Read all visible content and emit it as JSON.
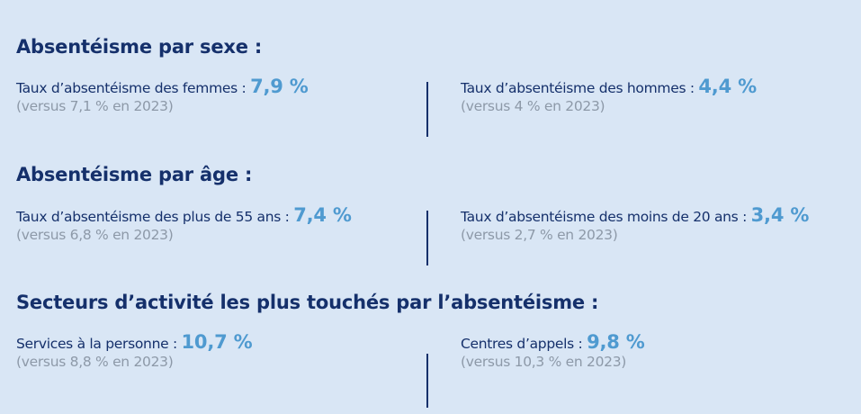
{
  "sections": [
    {
      "title": "Absentéisme par sexe :",
      "left": {
        "label": "Taux d’absentéisme des femmes : ",
        "value": "7,9 %",
        "compare": "(versus 7,1 % en 2023)"
      },
      "right": {
        "label": "Taux d’absentéisme des hommes : ",
        "value": "4,4 %",
        "compare": "(versus 4 % en 2023)"
      }
    },
    {
      "title": "Absentéisme par âge :",
      "left": {
        "label": "Taux d’absentéisme des plus de 55 ans : ",
        "value": "7,4 %",
        "compare": "(versus 6,8 % en 2023)"
      },
      "right": {
        "label": "Taux d’absentéisme des moins de 20 ans : ",
        "value": "3,4 %",
        "compare": "(versus 2,7 % en 2023)"
      }
    },
    {
      "title": "Secteurs d’activité les plus touchés par l’absentéisme :",
      "left": {
        "label": "Services à la personne : ",
        "value": "10,7 %",
        "compare": "(versus 8,8 % en 2023)"
      },
      "right": {
        "label": "Centres d’appels : ",
        "value": "9,8 %",
        "compare": "(versus 10,3 % en 2023)"
      }
    }
  ],
  "colors": {
    "background": "#d9e6f5",
    "title": "#15306b",
    "value": "#4f9ad0",
    "compare": "#8d99a8"
  }
}
